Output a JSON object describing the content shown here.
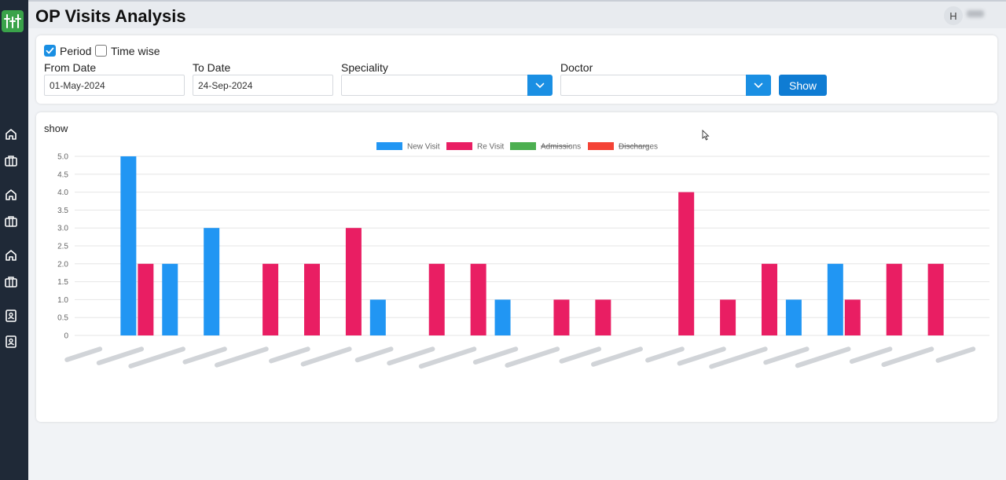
{
  "page": {
    "title": "OP Visits Analysis"
  },
  "user": {
    "avatar_initial": "H"
  },
  "sidebar": {
    "icons": [
      "home-icon",
      "briefcase-icon",
      "home-icon",
      "briefcase-icon",
      "home-icon",
      "briefcase-icon",
      "contact-book-icon",
      "contact-book-icon"
    ]
  },
  "filters": {
    "period_label": "Period",
    "period_checked": true,
    "timewise_label": "Time wise",
    "timewise_checked": false,
    "from_date_label": "From Date",
    "from_date_value": "01-May-2024",
    "to_date_label": "To Date",
    "to_date_value": "24-Sep-2024",
    "speciality_label": "Speciality",
    "speciality_value": "",
    "doctor_label": "Doctor",
    "doctor_value": "",
    "show_label": "Show"
  },
  "chart_section": {
    "title": "show"
  },
  "chart_data": {
    "type": "bar",
    "title": "",
    "xlabel": "",
    "ylabel": "",
    "ylim": [
      0,
      5
    ],
    "yticks": [
      "0",
      "0.5",
      "1.0",
      "1.5",
      "2.0",
      "2.5",
      "3.0",
      "3.5",
      "4.0",
      "4.5",
      "5.0"
    ],
    "grid": true,
    "legend_position": "top",
    "category_count": 22,
    "category_labels_note": "blurred",
    "series": [
      {
        "name": "New Visit",
        "color": "#2196f3",
        "hidden": false,
        "values": [
          0,
          5,
          2,
          3,
          0,
          0,
          0,
          1,
          0,
          0,
          1,
          0,
          0,
          0,
          0,
          0,
          0,
          1,
          2,
          0,
          0,
          0
        ]
      },
      {
        "name": "Re Visit",
        "color": "#e91e63",
        "hidden": false,
        "values": [
          0,
          2,
          0,
          0,
          2,
          2,
          3,
          0,
          2,
          2,
          0,
          1,
          1,
          0,
          4,
          1,
          2,
          0,
          1,
          2,
          2,
          0
        ]
      },
      {
        "name": "Admissions",
        "color": "#4caf50",
        "hidden": true,
        "values": []
      },
      {
        "name": "Discharges",
        "color": "#f44336",
        "hidden": true,
        "values": []
      }
    ]
  }
}
